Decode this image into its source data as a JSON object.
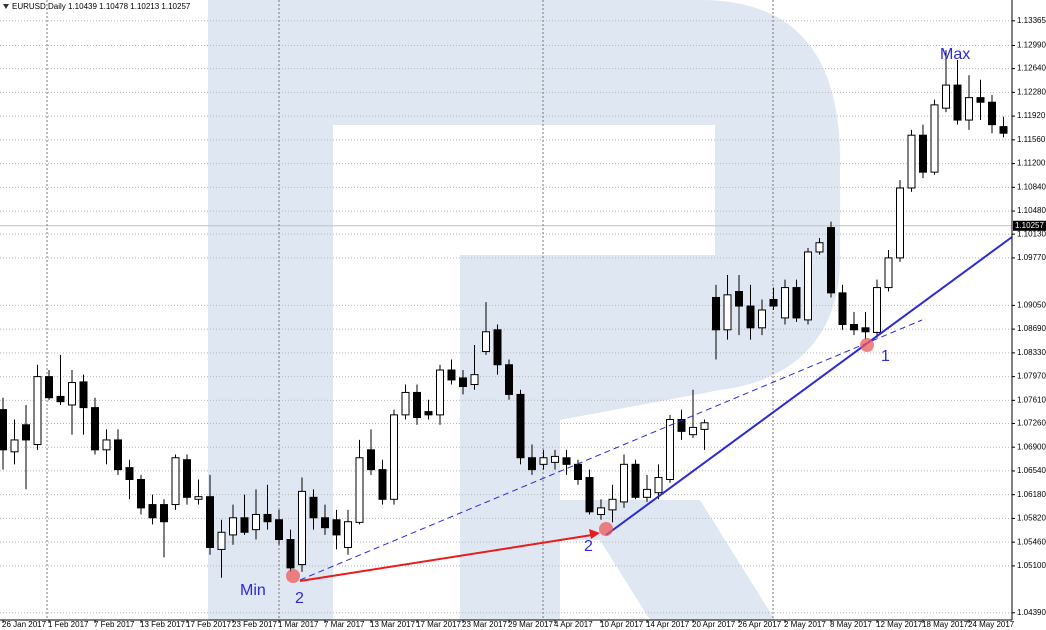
{
  "chart_data": {
    "type": "candlestick",
    "title": "EURUSD,Daily  1.10439 1.10478 1.10213 1.10257",
    "categories": [
      "26 Jan 2017",
      null,
      null,
      null,
      "1 Feb 2017",
      null,
      null,
      null,
      "7 Feb 2017",
      null,
      null,
      null,
      "13 Feb 2017",
      null,
      null,
      null,
      "17 Feb 2017",
      null,
      null,
      null,
      "23 Feb 2017",
      null,
      null,
      null,
      "1 Mar 2017",
      null,
      null,
      null,
      "7 Mar 2017",
      null,
      null,
      null,
      "13 Mar 2017",
      null,
      null,
      null,
      "17 Mar 2017",
      null,
      null,
      null,
      "23 Mar 2017",
      null,
      null,
      null,
      "29 Mar 2017",
      null,
      null,
      null,
      "4 Apr 2017",
      null,
      null,
      null,
      "10 Apr 2017",
      null,
      null,
      null,
      "14 Apr 2017",
      null,
      null,
      null,
      "20 Apr 2017",
      null,
      null,
      null,
      "26 Apr 2017",
      null,
      null,
      null,
      "2 May 2017",
      null,
      null,
      null,
      "8 May 2017",
      null,
      null,
      null,
      "12 May 2017",
      null,
      null,
      null,
      "18 May 2017",
      null,
      null,
      null,
      "24 May 2017",
      null,
      null,
      null
    ],
    "open": [
      1.0747,
      1.0683,
      1.0724,
      1.0694,
      1.0797,
      1.0767,
      1.0754,
      1.0789,
      1.075,
      1.0686,
      1.0701,
      1.0659,
      1.0641,
      1.0603,
      1.0603,
      1.0603,
      1.0671,
      1.0611,
      1.0615,
      1.0535,
      1.0557,
      1.0583,
      1.0565,
      1.0588,
      1.058,
      1.055,
      1.0512,
      1.0614,
      1.0583,
      1.058,
      1.0538,
      1.0576,
      1.0686,
      1.0656,
      1.0611,
      1.0739,
      1.0773,
      1.0744,
      1.0739,
      1.0807,
      1.0795,
      1.0785,
      1.0835,
      1.0868,
      1.0815,
      1.077,
      1.0674,
      1.0664,
      1.0667,
      1.0674,
      1.0664,
      1.0644,
      1.0588,
      1.0595,
      1.0607,
      1.0664,
      1.0614,
      1.0621,
      1.0641,
      1.0732,
      1.0709,
      1.0717,
      1.0917,
      1.0868,
      1.0926,
      1.0904,
      1.0871,
      1.0914,
      1.0886,
      1.0932,
      1.0883,
      1.0986,
      1.1023,
      1.0924,
      1.0876,
      1.0871,
      1.0864,
      1.0932,
      1.0977,
      1.1083,
      1.1163,
      1.1107,
      1.1204,
      1.1239,
      1.1186,
      1.122,
      1.1213,
      1.1176
    ],
    "high": [
      1.0765,
      1.0732,
      1.0754,
      1.0815,
      1.0807,
      1.083,
      1.0807,
      1.08,
      1.0765,
      1.0717,
      1.0717,
      1.0671,
      1.0648,
      1.0618,
      1.0611,
      1.0679,
      1.0679,
      1.0641,
      1.0648,
      1.058,
      1.0603,
      1.0618,
      1.0626,
      1.0633,
      1.0595,
      1.0565,
      1.0644,
      1.0626,
      1.0603,
      1.0595,
      1.0595,
      1.0701,
      1.0717,
      1.0671,
      1.0747,
      1.0785,
      1.0785,
      1.0762,
      1.0815,
      1.0823,
      1.0807,
      1.0845,
      1.091,
      1.0876,
      1.0823,
      1.0777,
      1.0694,
      1.0686,
      1.0686,
      1.0686,
      1.0671,
      1.0656,
      1.0611,
      1.0633,
      1.0679,
      1.0671,
      1.0648,
      1.0664,
      1.0739,
      1.0747,
      1.0777,
      1.0732,
      1.0936,
      1.0951,
      1.0951,
      1.0936,
      1.0914,
      1.0932,
      1.0944,
      1.0944,
      1.0992,
      1.1007,
      1.1032,
      1.0936,
      1.0895,
      1.0895,
      1.0944,
      1.0989,
      1.1095,
      1.1171,
      1.1179,
      1.1217,
      1.1292,
      1.1277,
      1.1254,
      1.1247,
      1.1224,
      1.1191
    ],
    "low": [
      1.0656,
      1.0664,
      1.0626,
      1.0686,
      1.0762,
      1.0754,
      1.0709,
      1.0709,
      1.0679,
      1.0664,
      1.0648,
      1.0611,
      1.0588,
      1.0573,
      1.0523,
      1.0595,
      1.0603,
      1.0603,
      1.0527,
      1.0492,
      1.0542,
      1.0557,
      1.055,
      1.0565,
      1.0542,
      1.0501,
      1.0501,
      1.0565,
      1.0557,
      1.0535,
      1.0527,
      1.0573,
      1.0648,
      1.0603,
      1.0603,
      1.0732,
      1.0724,
      1.0732,
      1.0724,
      1.0785,
      1.077,
      1.0777,
      1.083,
      1.08,
      1.0762,
      1.0664,
      1.0648,
      1.0656,
      1.0656,
      1.0648,
      1.0633,
      1.0588,
      1.058,
      1.0576,
      1.0598,
      1.0611,
      1.0607,
      1.0611,
      1.0636,
      1.0701,
      1.0704,
      1.0686,
      1.0823,
      1.0853,
      1.086,
      1.0853,
      1.086,
      1.0898,
      1.0876,
      1.088,
      1.0876,
      1.0982,
      1.0917,
      1.0868,
      1.086,
      1.0853,
      1.0856,
      1.0926,
      1.0971,
      1.1077,
      1.1098,
      1.1103,
      1.1198,
      1.1179,
      1.1171,
      1.1186,
      1.1166,
      1.116
    ],
    "close": [
      1.0686,
      1.0701,
      1.0701,
      1.0797,
      1.0765,
      1.0759,
      1.0788,
      1.075,
      1.0686,
      1.0701,
      1.0656,
      1.0641,
      1.0598,
      1.0583,
      1.0577,
      1.0674,
      1.0614,
      1.0615,
      1.0538,
      1.0561,
      1.0583,
      1.0561,
      1.0588,
      1.0577,
      1.055,
      1.0507,
      1.0623,
      1.0583,
      1.0568,
      1.0557,
      1.0577,
      1.0674,
      1.0656,
      1.0611,
      1.0739,
      1.0773,
      1.0735,
      1.0739,
      1.0807,
      1.0792,
      1.0782,
      1.08,
      1.0865,
      1.0815,
      1.077,
      1.0674,
      1.0656,
      1.0674,
      1.0676,
      1.0664,
      1.0641,
      1.0592,
      1.0598,
      1.0611,
      1.0664,
      1.0614,
      1.0626,
      1.0644,
      1.0732,
      1.0714,
      1.072,
      1.0727,
      1.0868,
      1.0921,
      1.0904,
      1.0871,
      1.0898,
      1.0904,
      1.0932,
      1.0886,
      1.0986,
      1.1,
      1.0924,
      1.0876,
      1.0868,
      1.0865,
      1.0932,
      1.0977,
      1.1083,
      1.1163,
      1.1107,
      1.1209,
      1.1239,
      1.1186,
      1.122,
      1.1213,
      1.1179,
      1.1166
    ],
    "up_color": "#ffffff",
    "down_color": "#000000",
    "current_price": 1.10257,
    "ylim": [
      1.0428,
      1.1368
    ],
    "yticks": [
      1.13365,
      {
        "value": 1.1299,
        "label": "1.12990"
      },
      {
        "value": 1.1264,
        "label": "1.12640"
      },
      {
        "value": 1.1228,
        "label": "1.12280"
      },
      {
        "value": 1.1192,
        "label": "1.11920"
      },
      {
        "value": 1.1156,
        "label": "1.11560"
      },
      {
        "value": 1.112,
        "label": "1.11200"
      },
      {
        "value": 1.1084,
        "label": "1.10840"
      },
      {
        "value": 1.1048,
        "label": "1.10480"
      },
      {
        "value": 1.1013,
        "label": "1.10130"
      },
      {
        "value": 1.0977,
        "label": "1.09770"
      },
      {
        "value": 1.0905,
        "label": "1.09050"
      },
      {
        "value": 1.0869,
        "label": "1.08690"
      },
      {
        "value": 1.0833,
        "label": "1.08330"
      },
      {
        "value": 1.0797,
        "label": "1.07970"
      },
      {
        "value": 1.0761,
        "label": "1.07610"
      },
      {
        "value": 1.0726,
        "label": "1.07260"
      },
      {
        "value": 1.069,
        "label": "1.06900"
      },
      {
        "value": 1.0654,
        "label": "1.06540"
      },
      {
        "value": 1.0618,
        "label": "1.06180"
      },
      {
        "value": 1.0582,
        "label": "1.05820"
      },
      {
        "value": 1.0546,
        "label": "1.05460"
      },
      {
        "value": 1.051,
        "label": "1.05100"
      },
      {
        "value": 1.0439,
        "label": "1.04390"
      }
    ],
    "grid": true,
    "annotations": [
      "Max",
      "Min",
      "2",
      "2",
      "1"
    ]
  }
}
